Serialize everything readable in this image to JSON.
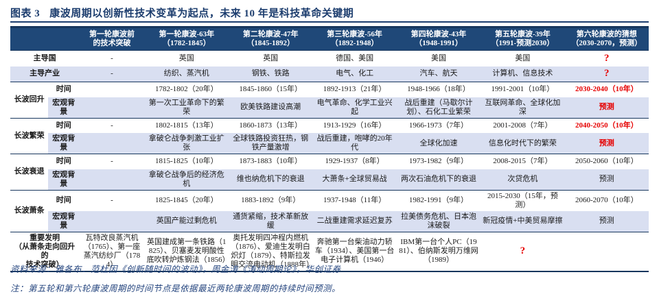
{
  "title": {
    "label": "图表 3",
    "text": "康波周期以创新性技术变革为起点，未来 10 年是科技革命关键期"
  },
  "colors": {
    "header-bg": "#1F4878",
    "line-dark": "#17365D",
    "row-shaded": "#D9DFF1",
    "accent-red": "#E60000",
    "title-navy": "#1C3D6E",
    "footer-navy": "#26467F"
  },
  "table": {
    "header": {
      "breakthrough": {
        "l1": "第一轮康波前",
        "l2": "的技术突破"
      },
      "waves": [
        {
          "l1": "第一轮康波-63年",
          "l2": "（1782-1845）"
        },
        {
          "l1": "第二轮康波-47年",
          "l2": "（1845-1892）"
        },
        {
          "l1": "第三轮康波-56年",
          "l2": "（1892-1948）"
        },
        {
          "l1": "第四轮康波-43年",
          "l2": "（1948-1991）"
        },
        {
          "l1": "第五轮康波-39年",
          "l2": "（1991-预测2030）"
        },
        {
          "l1": "第六轮康波的猜想",
          "l2": "（2030-2070，预测）"
        }
      ]
    },
    "lead_country": {
      "label": "主导国",
      "cells": [
        "-",
        "英国",
        "英国",
        "德国、美国",
        "美国",
        "美国",
        "?"
      ]
    },
    "lead_industry": {
      "label": "主导产业",
      "cells": [
        "-",
        "纺织、蒸汽机",
        "钢铁、铁路",
        "电气、化工",
        "汽车、航天",
        "计算机、信息技术",
        "?"
      ]
    },
    "groups": [
      {
        "name": "长波回升",
        "time": {
          "label": "时间",
          "cells": [
            "",
            "1782-1802（20年）",
            "1845-1860（15年）",
            "1892-1913（21年）",
            "1948-1966（18年）",
            "1991-2001（10年）",
            "2030-2040（10年）"
          ]
        },
        "macro": {
          "label": "宏观背景",
          "cells": [
            "",
            "第一次工业革命下的繁荣",
            "欧美铁路建设高潮",
            "电气革命、化学工业兴起",
            "战后重建（马歇尔计划）、石化工业繁荣",
            "互联网革命、全球化加深",
            "预测"
          ]
        }
      },
      {
        "name": "长波繁荣",
        "time": {
          "label": "时间",
          "cells": [
            "-",
            "1802-1815（13年）",
            "1860-1873（13年）",
            "1913-1929（16年）",
            "1966-1973（7年）",
            "2001-2008（7年）",
            "2040-2050（10年）"
          ]
        },
        "macro": {
          "label": "宏观背景",
          "cells": [
            "",
            "拿破仑战争刺激工业扩张",
            "全球铁路投资狂热，钢铁产量激增",
            "战后重建，咆哮的20年代",
            "全球化加速",
            "信息化时代下的繁荣",
            "预测"
          ]
        }
      },
      {
        "name": "长波衰退",
        "time": {
          "label": "时间",
          "cells": [
            "-",
            "1815-1825（10年）",
            "1873-1883（10年）",
            "1929-1937（8年）",
            "1973-1982（9年）",
            "2008-2015（7年）",
            "2050-2060（10年）"
          ]
        },
        "macro": {
          "label": "宏观背景",
          "cells": [
            "",
            "拿破仑战争后的经济危机",
            "维也纳危机下的衰退",
            "大萧条+全球贸易战",
            "两次石油危机下的衰退",
            "次贷危机",
            "预测"
          ]
        }
      },
      {
        "name": "长波萧条",
        "time": {
          "label": "时间",
          "cells": [
            "-",
            "1825-1845（20年）",
            "1883-1892（9年）",
            "1937-1948（11年）",
            "1982-1991（9年）",
            "2015-2030（15年，预测）",
            "2060-2070（10年）"
          ]
        },
        "macro": {
          "label": "宏观背景",
          "cells": [
            "",
            "英国产能过剩危机",
            "通货紧缩，技术革新放缓",
            "二战重建需求延迟复苏",
            "拉美债务危机、日本泡沫破裂",
            "新冠疫情+中美贸易摩擦",
            "预测"
          ]
        }
      }
    ],
    "invention": {
      "label_l1": "重要发明",
      "label_l2": "（从萧条走向回升的",
      "label_l3": "技术突破）",
      "cells": [
        "瓦特改良蒸汽机（1765）、第一座蒸汽纺纱厂（1784）",
        "英国建成第一条铁路（1825）、贝塞麦发明酸性底吹转炉炼钢法（1856）",
        "奥托发明四冲程内燃机（1876）、爱迪生发明白炽灯（1879）、特斯拉发明交流电动机（1888年）",
        "奔驰第一台柴油动力轿车（1934）、美国第一台电子计算机（1946）",
        "IBM第一台个人PC（1981）、伯纳斯发明万维网（1989）",
        "?",
        ""
      ]
    }
  },
  "footer": {
    "source": "资料来源：雅各布．范杜因《创新随时间的波动》，周金涛《涛动周期论》，华创证券",
    "note": "注：第五轮和第六轮康波周期的时间节点是依据最近两轮康波周期的持续时间预测。"
  }
}
